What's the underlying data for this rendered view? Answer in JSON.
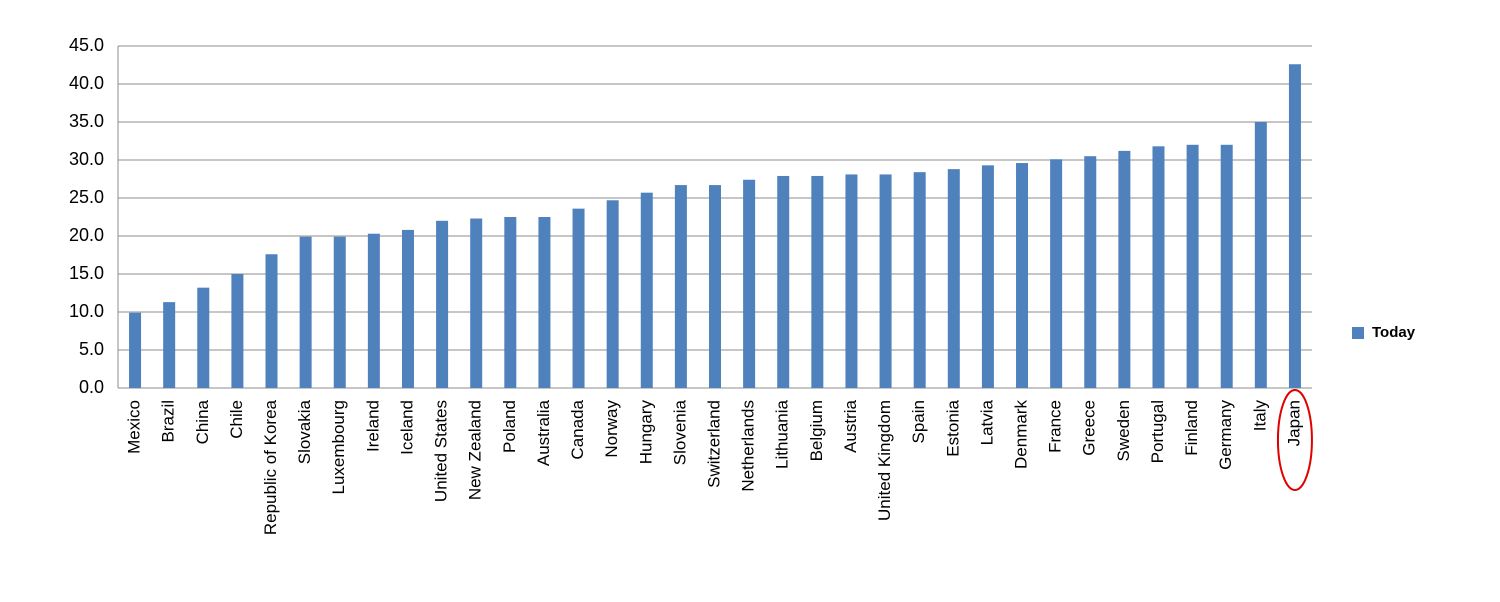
{
  "chart_data": {
    "type": "bar",
    "categories": [
      "Mexico",
      "Brazil",
      "China",
      "Chile",
      "Republic of Korea",
      "Slovakia",
      "Luxembourg",
      "Ireland",
      "Iceland",
      "United States",
      "New Zealand",
      "Poland",
      "Australia",
      "Canada",
      "Norway",
      "Hungary",
      "Slovenia",
      "Switzerland",
      "Netherlands",
      "Lithuania",
      "Belgium",
      "Austria",
      "United Kingdom",
      "Spain",
      "Estonia",
      "Latvia",
      "Denmark",
      "France",
      "Greece",
      "Sweden",
      "Portugal",
      "Finland",
      "Germany",
      "Italy",
      "Japan"
    ],
    "series": [
      {
        "name": "Today",
        "color": "#4f81bd",
        "values": [
          9.9,
          11.3,
          13.2,
          15.0,
          17.6,
          19.9,
          19.9,
          20.3,
          20.8,
          22.0,
          22.3,
          22.5,
          22.5,
          23.6,
          24.7,
          25.7,
          26.7,
          26.7,
          27.4,
          27.9,
          27.9,
          28.1,
          28.1,
          28.4,
          28.8,
          29.3,
          29.6,
          30.1,
          30.5,
          31.2,
          31.8,
          32.0,
          32.0,
          35.0,
          42.6
        ]
      }
    ],
    "ylim": [
      0,
      45
    ],
    "yticks": [
      {
        "value": 0,
        "label": "0.0"
      },
      {
        "value": 5,
        "label": "5.0"
      },
      {
        "value": 10,
        "label": "10.0"
      },
      {
        "value": 15,
        "label": "15.0"
      },
      {
        "value": 20,
        "label": "20.0"
      },
      {
        "value": 25,
        "label": "25.0"
      },
      {
        "value": 30,
        "label": "30.0"
      },
      {
        "value": 35,
        "label": "35.0"
      },
      {
        "value": 40,
        "label": "40.0"
      },
      {
        "value": 45,
        "label": "45.0"
      }
    ],
    "grid": true,
    "legend": "right"
  }
}
